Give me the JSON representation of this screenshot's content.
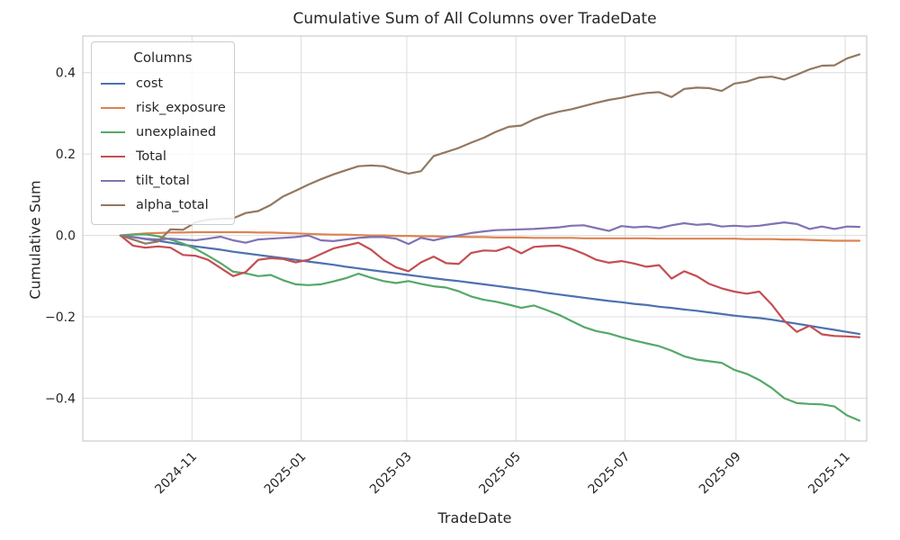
{
  "figure": {
    "title": "Cumulative Sum of All Columns over TradeDate",
    "xlabel": "TradeDate",
    "ylabel": "Cumulative Sum",
    "legend_title": "Columns"
  },
  "chart_data": {
    "type": "line",
    "title": "Cumulative Sum of All Columns over TradeDate",
    "xlabel": "TradeDate",
    "ylabel": "Cumulative Sum",
    "legend_title": "Columns",
    "legend_position": "upper left",
    "grid": true,
    "ylim": [
      -0.505,
      0.49
    ],
    "y_ticks": [
      0.4,
      0.2,
      0.0,
      -0.2,
      -0.4
    ],
    "y_tick_labels": [
      "0.4",
      "0.2",
      "0.0",
      "−0.2",
      "−0.4"
    ],
    "x_tick_dates": [
      "2024-11-01",
      "2025-01-01",
      "2025-03-01",
      "2025-05-01",
      "2025-07-01",
      "2025-09-01",
      "2025-11-01"
    ],
    "x_tick_labels": [
      "2024-11",
      "2025-01",
      "2025-03",
      "2025-05",
      "2025-07",
      "2025-09",
      "2025-11"
    ],
    "x": [
      "2024-09-22",
      "2024-09-29",
      "2024-10-06",
      "2024-10-13",
      "2024-10-20",
      "2024-10-27",
      "2024-11-03",
      "2024-11-10",
      "2024-11-17",
      "2024-11-24",
      "2024-12-01",
      "2024-12-08",
      "2024-12-15",
      "2024-12-22",
      "2024-12-29",
      "2025-01-05",
      "2025-01-12",
      "2025-01-19",
      "2025-01-26",
      "2025-02-02",
      "2025-02-09",
      "2025-02-16",
      "2025-02-23",
      "2025-03-02",
      "2025-03-09",
      "2025-03-16",
      "2025-03-23",
      "2025-03-30",
      "2025-04-06",
      "2025-04-13",
      "2025-04-20",
      "2025-04-27",
      "2025-05-04",
      "2025-05-11",
      "2025-05-18",
      "2025-05-25",
      "2025-06-01",
      "2025-06-08",
      "2025-06-15",
      "2025-06-22",
      "2025-06-29",
      "2025-07-06",
      "2025-07-13",
      "2025-07-20",
      "2025-07-27",
      "2025-08-03",
      "2025-08-10",
      "2025-08-17",
      "2025-08-24",
      "2025-08-31",
      "2025-09-07",
      "2025-09-14",
      "2025-09-21",
      "2025-09-28",
      "2025-10-05",
      "2025-10-12",
      "2025-10-19",
      "2025-10-26",
      "2025-11-02",
      "2025-11-09"
    ],
    "series": [
      {
        "name": "cost",
        "color": "#4C72B0",
        "values": [
          0.0,
          -0.004,
          -0.009,
          -0.013,
          -0.018,
          -0.023,
          -0.027,
          -0.031,
          -0.035,
          -0.04,
          -0.044,
          -0.048,
          -0.052,
          -0.056,
          -0.06,
          -0.064,
          -0.068,
          -0.072,
          -0.077,
          -0.081,
          -0.085,
          -0.089,
          -0.093,
          -0.097,
          -0.101,
          -0.105,
          -0.109,
          -0.112,
          -0.116,
          -0.12,
          -0.124,
          -0.128,
          -0.132,
          -0.136,
          -0.141,
          -0.145,
          -0.149,
          -0.153,
          -0.157,
          -0.161,
          -0.164,
          -0.168,
          -0.171,
          -0.175,
          -0.178,
          -0.182,
          -0.185,
          -0.189,
          -0.193,
          -0.197,
          -0.2,
          -0.203,
          -0.207,
          -0.212,
          -0.217,
          -0.222,
          -0.227,
          -0.232,
          -0.237,
          -0.242
        ]
      },
      {
        "name": "risk_exposure",
        "color": "#DD8452",
        "values": [
          0.0,
          0.003,
          0.005,
          0.006,
          0.007,
          0.007,
          0.008,
          0.008,
          0.008,
          0.008,
          0.008,
          0.007,
          0.007,
          0.006,
          0.005,
          0.004,
          0.003,
          0.002,
          0.002,
          0.001,
          0.0,
          0.0,
          -0.001,
          -0.001,
          -0.002,
          -0.002,
          -0.003,
          -0.003,
          -0.004,
          -0.004,
          -0.005,
          -0.005,
          -0.005,
          -0.006,
          -0.006,
          -0.006,
          -0.006,
          -0.007,
          -0.007,
          -0.007,
          -0.007,
          -0.007,
          -0.007,
          -0.008,
          -0.008,
          -0.008,
          -0.008,
          -0.008,
          -0.008,
          -0.008,
          -0.009,
          -0.009,
          -0.009,
          -0.01,
          -0.01,
          -0.011,
          -0.012,
          -0.013,
          -0.013,
          -0.013
        ]
      },
      {
        "name": "unexplained",
        "color": "#55A868",
        "values": [
          0.0,
          0.002,
          0.003,
          -0.002,
          -0.01,
          -0.02,
          -0.033,
          -0.05,
          -0.068,
          -0.089,
          -0.093,
          -0.1,
          -0.097,
          -0.11,
          -0.12,
          -0.122,
          -0.12,
          -0.113,
          -0.105,
          -0.094,
          -0.104,
          -0.112,
          -0.117,
          -0.112,
          -0.119,
          -0.125,
          -0.128,
          -0.137,
          -0.15,
          -0.158,
          -0.163,
          -0.17,
          -0.178,
          -0.172,
          -0.183,
          -0.195,
          -0.21,
          -0.225,
          -0.235,
          -0.241,
          -0.25,
          -0.258,
          -0.265,
          -0.272,
          -0.283,
          -0.297,
          -0.305,
          -0.309,
          -0.313,
          -0.33,
          -0.34,
          -0.355,
          -0.375,
          -0.4,
          -0.412,
          -0.414,
          -0.415,
          -0.42,
          -0.442,
          -0.455
        ]
      },
      {
        "name": "Total",
        "color": "#C44E52",
        "values": [
          0.0,
          -0.025,
          -0.03,
          -0.027,
          -0.03,
          -0.048,
          -0.05,
          -0.06,
          -0.08,
          -0.1,
          -0.09,
          -0.06,
          -0.056,
          -0.058,
          -0.066,
          -0.06,
          -0.046,
          -0.032,
          -0.025,
          -0.018,
          -0.035,
          -0.06,
          -0.078,
          -0.088,
          -0.066,
          -0.052,
          -0.068,
          -0.07,
          -0.043,
          -0.037,
          -0.038,
          -0.028,
          -0.044,
          -0.028,
          -0.026,
          -0.025,
          -0.033,
          -0.045,
          -0.06,
          -0.067,
          -0.063,
          -0.069,
          -0.077,
          -0.073,
          -0.106,
          -0.088,
          -0.1,
          -0.119,
          -0.13,
          -0.138,
          -0.143,
          -0.138,
          -0.17,
          -0.21,
          -0.237,
          -0.222,
          -0.243,
          -0.247,
          -0.248,
          -0.25
        ]
      },
      {
        "name": "tilt_total",
        "color": "#8172B3",
        "values": [
          0.0,
          -0.004,
          -0.008,
          -0.01,
          -0.008,
          -0.01,
          -0.012,
          -0.008,
          -0.003,
          -0.012,
          -0.018,
          -0.01,
          -0.008,
          -0.006,
          -0.004,
          0.0,
          -0.012,
          -0.014,
          -0.01,
          -0.006,
          -0.004,
          -0.004,
          -0.008,
          -0.021,
          -0.006,
          -0.012,
          -0.005,
          0.0,
          0.006,
          0.01,
          0.013,
          0.014,
          0.015,
          0.016,
          0.018,
          0.02,
          0.024,
          0.025,
          0.018,
          0.011,
          0.023,
          0.02,
          0.022,
          0.018,
          0.025,
          0.03,
          0.026,
          0.028,
          0.022,
          0.024,
          0.022,
          0.024,
          0.028,
          0.032,
          0.028,
          0.016,
          0.022,
          0.016,
          0.022,
          0.021
        ]
      },
      {
        "name": "alpha_total",
        "color": "#937860",
        "values": [
          0.0,
          -0.01,
          -0.02,
          -0.015,
          0.015,
          0.014,
          0.032,
          0.039,
          0.041,
          0.042,
          0.055,
          0.06,
          0.075,
          0.096,
          0.11,
          0.125,
          0.138,
          0.15,
          0.16,
          0.17,
          0.172,
          0.17,
          0.16,
          0.152,
          0.158,
          0.195,
          0.205,
          0.215,
          0.228,
          0.24,
          0.255,
          0.267,
          0.27,
          0.285,
          0.296,
          0.304,
          0.31,
          0.318,
          0.326,
          0.333,
          0.338,
          0.345,
          0.35,
          0.352,
          0.34,
          0.36,
          0.363,
          0.362,
          0.355,
          0.373,
          0.378,
          0.388,
          0.39,
          0.383,
          0.395,
          0.408,
          0.417,
          0.418,
          0.435,
          0.445
        ]
      }
    ],
    "style": {
      "grid_color": "#dcdcdc",
      "spine_color": "#cccccc",
      "text_color": "#262626",
      "background": "#ffffff",
      "line_width": 2.2
    }
  }
}
